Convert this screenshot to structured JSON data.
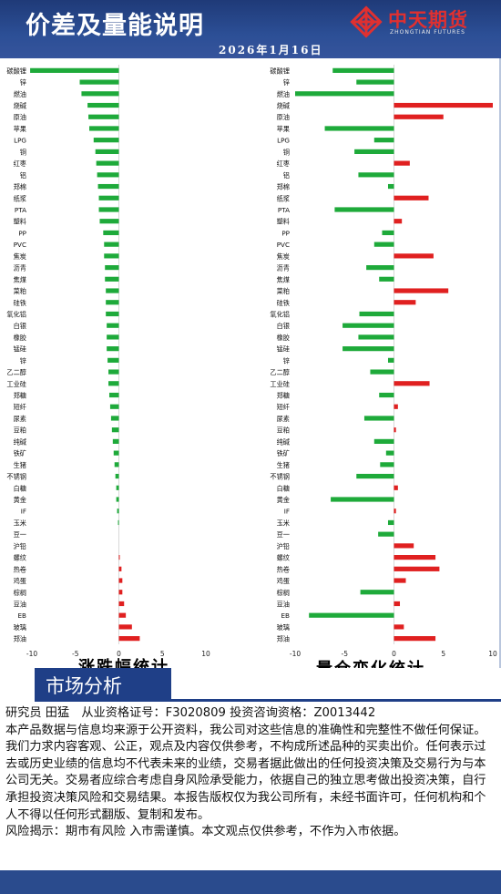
{
  "header": {
    "title": "价差及量能说明",
    "date": "2026年1月16日",
    "logo_name": "中天期货",
    "logo_en": "ZHONGTIAN FUTURES"
  },
  "section": {
    "label": "市场分析"
  },
  "disclaimer": {
    "author_line": "研究员 田猛　从业资格证号：F3020809 投资咨询资格：Z0013442",
    "body": "本产品数据与信息均来源于公开资料，我公司对这些信息的准确性和完整性不做任何保证。我们力求内容客观、公正，观点及内容仅供参考，不构成所述品种的买卖出价。任何表示过去或历史业绩的信息均不代表未来的业绩，交易者据此做出的任何投资决策及交易行为与本公司无关。交易者应综合考虑自身风险承受能力，依据自己的独立思考做出投资决策，自行承担投资决策风险和交易结果。本报告版权仅为我公司所有，未经书面许可，任何机构和个人不得以任何形式翻版、复制和发布。",
    "risk": "风险揭示：期市有风险 入市需谨慎。本文观点仅供参考，不作为入市依据。"
  },
  "colors": {
    "up": "#e02020",
    "down": "#1eaa3a",
    "header": "#1f3a78"
  },
  "chart_data": [
    {
      "type": "bar",
      "orientation": "horizontal",
      "title": "涨跌幅统计",
      "xlim": [
        -10,
        10
      ],
      "xticks": [
        -10,
        -5,
        0,
        5,
        10
      ],
      "categories": [
        "碳酸锂",
        "锌",
        "燃油",
        "烧碱",
        "原油",
        "苹果",
        "LPG",
        "铜",
        "红枣",
        "铝",
        "郑棉",
        "纸浆",
        "PTA",
        "塑料",
        "PP",
        "PVC",
        "焦炭",
        "沥青",
        "焦煤",
        "菜粕",
        "硅铁",
        "氧化铝",
        "白银",
        "橡胶",
        "锰硅",
        "锌",
        "乙二醇",
        "工业硅",
        "郑糖",
        "短纤",
        "尿素",
        "豆粕",
        "纯碱",
        "铁矿",
        "生猪",
        "不锈钢",
        "白糖",
        "黄金",
        "IF",
        "玉米",
        "豆一",
        "沪铅",
        "螺纹",
        "热卷",
        "鸡蛋",
        "棕榈",
        "豆油",
        "EB",
        "玻璃",
        "郑油"
      ],
      "values": [
        -10.2,
        -4.5,
        -4.3,
        -3.6,
        -3.5,
        -3.4,
        -2.9,
        -2.7,
        -2.6,
        -2.5,
        -2.4,
        -2.3,
        -2.3,
        -2.2,
        -1.8,
        -1.7,
        -1.7,
        -1.6,
        -1.6,
        -1.5,
        -1.5,
        -1.5,
        -1.4,
        -1.4,
        -1.4,
        -1.3,
        -1.2,
        -1.2,
        -1.1,
        -1.0,
        -0.9,
        -0.8,
        -0.7,
        -0.6,
        -0.5,
        -0.4,
        -0.3,
        -0.3,
        -0.2,
        -0.1,
        0.0,
        0.0,
        0.1,
        0.3,
        0.4,
        0.4,
        0.6,
        0.8,
        1.5,
        2.4
      ]
    },
    {
      "type": "bar",
      "orientation": "horizontal",
      "title": "量仓变化统计",
      "xlim": [
        -10,
        10
      ],
      "xticks": [
        -10,
        -5,
        0,
        5,
        10
      ],
      "categories": [
        "碳酸锂",
        "锌",
        "燃油",
        "烧碱",
        "原油",
        "苹果",
        "LPG",
        "铜",
        "红枣",
        "铝",
        "郑棉",
        "纸浆",
        "PTA",
        "塑料",
        "PP",
        "PVC",
        "焦炭",
        "沥青",
        "焦煤",
        "菜粕",
        "硅铁",
        "氧化铝",
        "白银",
        "橡胶",
        "锰硅",
        "锌",
        "乙二醇",
        "工业硅",
        "郑糖",
        "短纤",
        "尿素",
        "豆粕",
        "纯碱",
        "铁矿",
        "生猪",
        "不锈钢",
        "白糖",
        "黄金",
        "IF",
        "玉米",
        "豆一",
        "沪铅",
        "螺纹",
        "热卷",
        "鸡蛋",
        "棕榈",
        "豆油",
        "EB",
        "玻璃",
        "郑油"
      ],
      "values": [
        -6.2,
        -3.8,
        -10.0,
        10.0,
        5.0,
        -7.0,
        -2.0,
        -4.0,
        1.6,
        -3.6,
        -0.6,
        3.5,
        -6.0,
        0.8,
        -1.2,
        -2.0,
        4.0,
        -2.8,
        -1.5,
        5.5,
        2.2,
        -3.5,
        -5.2,
        -3.6,
        -5.2,
        -0.6,
        -2.4,
        3.6,
        -1.5,
        0.4,
        -3.0,
        0.2,
        -2.0,
        -0.8,
        -1.4,
        -3.8,
        0.4,
        -6.4,
        0.2,
        -0.6,
        -1.6,
        2.0,
        4.2,
        4.6,
        1.2,
        -3.4,
        0.6,
        -8.6,
        1.0,
        4.2
      ]
    }
  ]
}
